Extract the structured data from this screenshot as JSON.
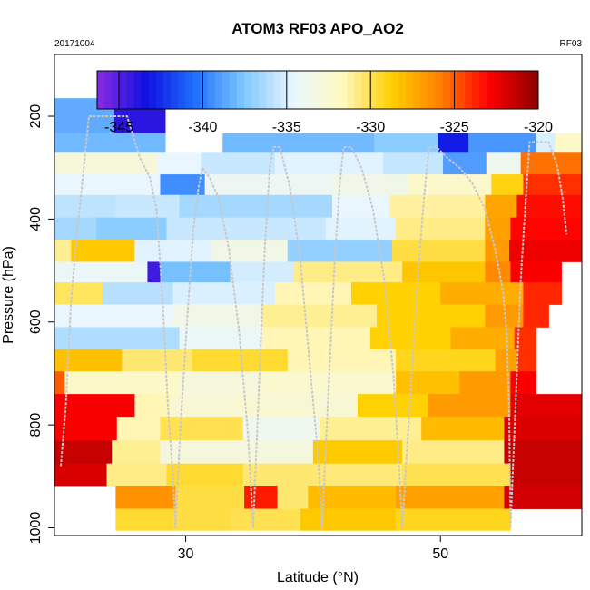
{
  "chart_data": {
    "type": "heatmap",
    "title": "ATOM3 RF03 APO_AO2",
    "subtitle_left": "20171004",
    "subtitle_right": "RF03",
    "xlabel": "Latitude (°N)",
    "ylabel": "Pressure (hPa)",
    "xlim": [
      19.7,
      61.1
    ],
    "ylim": [
      1015,
      80
    ],
    "x_ticks": [
      30,
      50
    ],
    "y_ticks": [
      200,
      400,
      600,
      800,
      1000
    ],
    "colorbar": {
      "range": [
        -346.3,
        -320
      ],
      "ticks": [
        -345,
        -340,
        -335,
        -330,
        -325,
        -320
      ],
      "colors": [
        "#8a2be2",
        "#1010e0",
        "#2070ff",
        "#80c8ff",
        "#e8f6ff",
        "#fff8c0",
        "#ffd000",
        "#ff8000",
        "#ff0000",
        "#8b0000"
      ]
    },
    "rows": [
      {
        "p_top": 165,
        "p_bot": 233,
        "cells": [
          {
            "x0": 19.7,
            "x1": 24.4,
            "v": -338.5
          },
          {
            "x0": 24.4,
            "x1": 28.4,
            "v": -344.0
          }
        ]
      },
      {
        "p_top": 233,
        "p_bot": 271,
        "cells": [
          {
            "x0": 19.7,
            "x1": 28.4,
            "v": -338.0
          },
          {
            "x0": 32.9,
            "x1": 44.8,
            "v": -338.0
          },
          {
            "x0": 44.8,
            "x1": 49.8,
            "v": -337.2
          },
          {
            "x0": 49.8,
            "x1": 52.2,
            "v": -343.0
          },
          {
            "x0": 52.2,
            "x1": 57.5,
            "v": -339.2
          },
          {
            "x0": 57.5,
            "x1": 59.0,
            "v": -335.0
          },
          {
            "x0": 59.0,
            "x1": 61.1,
            "v": -332.0
          }
        ]
      },
      {
        "p_top": 271,
        "p_bot": 313,
        "cells": [
          {
            "x0": 19.7,
            "x1": 27.8,
            "v": -332.8
          },
          {
            "x0": 27.8,
            "x1": 31.2,
            "v": -334.5
          },
          {
            "x0": 31.2,
            "x1": 37.0,
            "v": -335.5
          },
          {
            "x0": 37.0,
            "x1": 45.5,
            "v": -334.8
          },
          {
            "x0": 45.5,
            "x1": 50.2,
            "v": -335.6
          },
          {
            "x0": 50.2,
            "x1": 53.6,
            "v": -339.0
          },
          {
            "x0": 53.6,
            "x1": 56.3,
            "v": -333.8
          },
          {
            "x0": 56.3,
            "x1": 61.1,
            "v": -325.5
          }
        ]
      },
      {
        "p_top": 313,
        "p_bot": 353,
        "cells": [
          {
            "x0": 19.7,
            "x1": 28.0,
            "v": -334.5
          },
          {
            "x0": 28.0,
            "x1": 31.5,
            "v": -339.5
          },
          {
            "x0": 31.5,
            "x1": 41.5,
            "v": -334.0
          },
          {
            "x0": 41.5,
            "x1": 47.5,
            "v": -333.6
          },
          {
            "x0": 47.5,
            "x1": 54.0,
            "v": -332.2
          },
          {
            "x0": 54.0,
            "x1": 56.5,
            "v": -329.0
          },
          {
            "x0": 56.5,
            "x1": 61.1,
            "v": -324.0
          }
        ]
      },
      {
        "p_top": 353,
        "p_bot": 397,
        "cells": [
          {
            "x0": 19.7,
            "x1": 24.5,
            "v": -335.8
          },
          {
            "x0": 24.5,
            "x1": 29.5,
            "v": -335.5
          },
          {
            "x0": 29.5,
            "x1": 41.5,
            "v": -336.5
          },
          {
            "x0": 41.5,
            "x1": 46.0,
            "v": -334.5
          },
          {
            "x0": 46.0,
            "x1": 53.5,
            "v": -331.2
          },
          {
            "x0": 53.5,
            "x1": 56.0,
            "v": -327.2
          },
          {
            "x0": 56.0,
            "x1": 61.1,
            "v": -323.2
          }
        ]
      },
      {
        "p_top": 397,
        "p_bot": 440,
        "cells": [
          {
            "x0": 19.7,
            "x1": 23.0,
            "v": -336.5
          },
          {
            "x0": 23.0,
            "x1": 28.5,
            "v": -337.2
          },
          {
            "x0": 28.5,
            "x1": 41.0,
            "v": -335.5
          },
          {
            "x0": 41.0,
            "x1": 46.5,
            "v": -334.8
          },
          {
            "x0": 46.5,
            "x1": 53.5,
            "v": -330.8
          },
          {
            "x0": 53.5,
            "x1": 55.5,
            "v": -327.0
          },
          {
            "x0": 55.5,
            "x1": 61.1,
            "v": -323.0
          }
        ]
      },
      {
        "p_top": 440,
        "p_bot": 483,
        "cells": [
          {
            "x0": 19.7,
            "x1": 21.0,
            "v": -331.0
          },
          {
            "x0": 21.0,
            "x1": 26.0,
            "v": -328.5
          },
          {
            "x0": 26.0,
            "x1": 32.0,
            "v": -334.8
          },
          {
            "x0": 32.0,
            "x1": 38.0,
            "v": -333.5
          },
          {
            "x0": 38.0,
            "x1": 46.2,
            "v": -337.0
          },
          {
            "x0": 46.2,
            "x1": 53.5,
            "v": -329.8
          },
          {
            "x0": 53.5,
            "x1": 55.4,
            "v": -326.8
          },
          {
            "x0": 55.4,
            "x1": 61.1,
            "v": -322.5
          }
        ]
      },
      {
        "p_top": 483,
        "p_bot": 523,
        "cells": [
          {
            "x0": 19.7,
            "x1": 27.0,
            "v": -334.2
          },
          {
            "x0": 27.0,
            "x1": 28.0,
            "v": -344.5
          },
          {
            "x0": 28.0,
            "x1": 33.5,
            "v": -337.8
          },
          {
            "x0": 33.5,
            "x1": 38.5,
            "v": -335.2
          },
          {
            "x0": 38.5,
            "x1": 47.0,
            "v": -330.8
          },
          {
            "x0": 47.0,
            "x1": 53.5,
            "v": -328.4
          },
          {
            "x0": 53.5,
            "x1": 55.5,
            "v": -326.2
          },
          {
            "x0": 55.5,
            "x1": 59.5,
            "v": -322.8
          }
        ]
      },
      {
        "p_top": 523,
        "p_bot": 566,
        "cells": [
          {
            "x0": 19.7,
            "x1": 23.5,
            "v": -330.2
          },
          {
            "x0": 23.5,
            "x1": 29.0,
            "v": -336.0
          },
          {
            "x0": 29.0,
            "x1": 37.0,
            "v": -335.0
          },
          {
            "x0": 37.0,
            "x1": 43.0,
            "v": -331.5
          },
          {
            "x0": 43.0,
            "x1": 50.0,
            "v": -328.8
          },
          {
            "x0": 50.0,
            "x1": 56.5,
            "v": -327.5
          },
          {
            "x0": 56.5,
            "x1": 59.5,
            "v": -323.8
          }
        ]
      },
      {
        "p_top": 566,
        "p_bot": 610,
        "cells": [
          {
            "x0": 19.7,
            "x1": 29.0,
            "v": -334.5
          },
          {
            "x0": 29.0,
            "x1": 36.0,
            "v": -333.5
          },
          {
            "x0": 36.0,
            "x1": 45.0,
            "v": -331.0
          },
          {
            "x0": 45.0,
            "x1": 53.5,
            "v": -328.8
          },
          {
            "x0": 53.5,
            "x1": 56.5,
            "v": -326.8
          },
          {
            "x0": 56.5,
            "x1": 58.5,
            "v": -323.8
          }
        ]
      },
      {
        "p_top": 610,
        "p_bot": 653,
        "cells": [
          {
            "x0": 19.7,
            "x1": 29.5,
            "v": -336.2
          },
          {
            "x0": 29.5,
            "x1": 36.0,
            "v": -334.2
          },
          {
            "x0": 36.0,
            "x1": 44.5,
            "v": -331.5
          },
          {
            "x0": 44.5,
            "x1": 50.8,
            "v": -328.8
          },
          {
            "x0": 50.8,
            "x1": 55.8,
            "v": -327.5
          },
          {
            "x0": 55.8,
            "x1": 57.5,
            "v": -324.0
          }
        ]
      },
      {
        "p_top": 653,
        "p_bot": 696,
        "cells": [
          {
            "x0": 19.7,
            "x1": 25.0,
            "v": -328.2
          },
          {
            "x0": 25.0,
            "x1": 30.5,
            "v": -330.5
          },
          {
            "x0": 30.5,
            "x1": 38.0,
            "v": -329.5
          },
          {
            "x0": 38.0,
            "x1": 46.5,
            "v": -331.5
          },
          {
            "x0": 46.5,
            "x1": 54.3,
            "v": -329.2
          },
          {
            "x0": 54.3,
            "x1": 56.0,
            "v": -327.0
          },
          {
            "x0": 56.0,
            "x1": 57.5,
            "v": -324.0
          }
        ]
      },
      {
        "p_top": 696,
        "p_bot": 740,
        "cells": [
          {
            "x0": 19.7,
            "x1": 20.5,
            "v": -325.0
          },
          {
            "x0": 20.5,
            "x1": 29.5,
            "v": -332.0
          },
          {
            "x0": 29.5,
            "x1": 36.0,
            "v": -333.0
          },
          {
            "x0": 36.0,
            "x1": 46.5,
            "v": -332.4
          },
          {
            "x0": 46.5,
            "x1": 51.5,
            "v": -328.2
          },
          {
            "x0": 51.5,
            "x1": 55.5,
            "v": -326.8
          },
          {
            "x0": 55.5,
            "x1": 57.5,
            "v": -322.8
          }
        ]
      },
      {
        "p_top": 740,
        "p_bot": 784,
        "cells": [
          {
            "x0": 19.7,
            "x1": 26.0,
            "v": -322.8
          },
          {
            "x0": 26.0,
            "x1": 28.8,
            "v": -331.5
          },
          {
            "x0": 28.8,
            "x1": 35.8,
            "v": -332.6
          },
          {
            "x0": 35.8,
            "x1": 43.5,
            "v": -332.6
          },
          {
            "x0": 43.5,
            "x1": 49.0,
            "v": -328.8
          },
          {
            "x0": 49.0,
            "x1": 55.5,
            "v": -326.8
          },
          {
            "x0": 55.5,
            "x1": 61.1,
            "v": -322.2
          }
        ]
      },
      {
        "p_top": 784,
        "p_bot": 830,
        "cells": [
          {
            "x0": 19.7,
            "x1": 24.6,
            "v": -322.8
          },
          {
            "x0": 24.6,
            "x1": 28.0,
            "v": -331.5
          },
          {
            "x0": 28.0,
            "x1": 34.5,
            "v": -330.0
          },
          {
            "x0": 34.5,
            "x1": 40.5,
            "v": -333.8
          },
          {
            "x0": 40.5,
            "x1": 48.5,
            "v": -331.0
          },
          {
            "x0": 48.5,
            "x1": 55.0,
            "v": -328.0
          },
          {
            "x0": 55.0,
            "x1": 61.1,
            "v": -322.0
          }
        ]
      },
      {
        "p_top": 830,
        "p_bot": 875,
        "cells": [
          {
            "x0": 19.7,
            "x1": 24.2,
            "v": -321.5
          },
          {
            "x0": 24.2,
            "x1": 28.0,
            "v": -331.0
          },
          {
            "x0": 28.0,
            "x1": 34.0,
            "v": -333.0
          },
          {
            "x0": 34.0,
            "x1": 40.0,
            "v": -333.0
          },
          {
            "x0": 40.0,
            "x1": 47.0,
            "v": -328.6
          },
          {
            "x0": 47.0,
            "x1": 55.0,
            "v": -330.8
          },
          {
            "x0": 55.0,
            "x1": 61.1,
            "v": -321.5
          }
        ]
      },
      {
        "p_top": 875,
        "p_bot": 918,
        "cells": [
          {
            "x0": 19.7,
            "x1": 23.8,
            "v": -322.0
          },
          {
            "x0": 23.8,
            "x1": 28.5,
            "v": -330.8
          },
          {
            "x0": 28.5,
            "x1": 34.5,
            "v": -329.5
          },
          {
            "x0": 34.5,
            "x1": 41.0,
            "v": -330.5
          },
          {
            "x0": 41.0,
            "x1": 47.0,
            "v": -330.6
          },
          {
            "x0": 47.0,
            "x1": 55.5,
            "v": -330.0
          },
          {
            "x0": 55.5,
            "x1": 61.1,
            "v": -321.5
          }
        ]
      },
      {
        "p_top": 918,
        "p_bot": 963,
        "cells": [
          {
            "x0": 24.5,
            "x1": 29.2,
            "v": -326.5
          },
          {
            "x0": 29.2,
            "x1": 34.6,
            "v": -329.8
          },
          {
            "x0": 34.6,
            "x1": 37.2,
            "v": -323.5
          },
          {
            "x0": 37.2,
            "x1": 39.6,
            "v": -330.5
          },
          {
            "x0": 39.6,
            "x1": 46.5,
            "v": -328.0
          },
          {
            "x0": 46.5,
            "x1": 55.0,
            "v": -327.0
          },
          {
            "x0": 55.0,
            "x1": 61.1,
            "v": -321.8
          }
        ]
      },
      {
        "p_top": 963,
        "p_bot": 1005,
        "cells": [
          {
            "x0": 24.5,
            "x1": 29.0,
            "v": -329.5
          },
          {
            "x0": 29.0,
            "x1": 33.5,
            "v": -329.8
          },
          {
            "x0": 33.5,
            "x1": 39.0,
            "v": -330.0
          },
          {
            "x0": 39.0,
            "x1": 46.5,
            "v": -328.5
          },
          {
            "x0": 46.5,
            "x1": 55.5,
            "v": -329.2
          }
        ]
      }
    ],
    "flight_track": [
      [
        20.2,
        880
      ],
      [
        20.6,
        760
      ],
      [
        21.0,
        560
      ],
      [
        21.5,
        420
      ],
      [
        22.0,
        300
      ],
      [
        22.4,
        200
      ],
      [
        23.8,
        200
      ],
      [
        25.4,
        200
      ],
      [
        26.4,
        280
      ],
      [
        27.2,
        320
      ],
      [
        27.7,
        380
      ],
      [
        28.2,
        560
      ],
      [
        28.6,
        760
      ],
      [
        29.0,
        900
      ],
      [
        29.2,
        1000
      ],
      [
        29.6,
        800
      ],
      [
        30.1,
        600
      ],
      [
        30.6,
        420
      ],
      [
        31.0,
        340
      ],
      [
        31.3,
        300
      ],
      [
        31.9,
        320
      ],
      [
        32.6,
        360
      ],
      [
        33.4,
        460
      ],
      [
        34.2,
        620
      ],
      [
        34.9,
        820
      ],
      [
        35.3,
        1000
      ],
      [
        35.8,
        700
      ],
      [
        36.2,
        460
      ],
      [
        36.6,
        300
      ],
      [
        36.9,
        260
      ],
      [
        37.4,
        260
      ],
      [
        38.2,
        340
      ],
      [
        39.0,
        480
      ],
      [
        39.8,
        700
      ],
      [
        40.4,
        860
      ],
      [
        40.7,
        1000
      ],
      [
        41.2,
        740
      ],
      [
        41.7,
        480
      ],
      [
        42.1,
        330
      ],
      [
        42.4,
        260
      ],
      [
        43.0,
        260
      ],
      [
        43.8,
        300
      ],
      [
        44.7,
        380
      ],
      [
        45.6,
        520
      ],
      [
        46.3,
        700
      ],
      [
        46.8,
        900
      ],
      [
        47.0,
        1000
      ],
      [
        47.6,
        760
      ],
      [
        48.2,
        520
      ],
      [
        48.7,
        360
      ],
      [
        49.1,
        260
      ],
      [
        49.7,
        260
      ],
      [
        50.5,
        280
      ],
      [
        51.5,
        300
      ],
      [
        52.5,
        330
      ],
      [
        53.5,
        380
      ],
      [
        54.3,
        460
      ],
      [
        54.9,
        540
      ],
      [
        55.2,
        620
      ],
      [
        55.4,
        780
      ],
      [
        55.5,
        1000
      ],
      [
        55.9,
        760
      ],
      [
        56.3,
        520
      ],
      [
        56.7,
        360
      ],
      [
        57.0,
        250
      ],
      [
        58.5,
        250
      ],
      [
        59.2,
        300
      ],
      [
        59.6,
        360
      ],
      [
        59.9,
        430
      ]
    ]
  }
}
